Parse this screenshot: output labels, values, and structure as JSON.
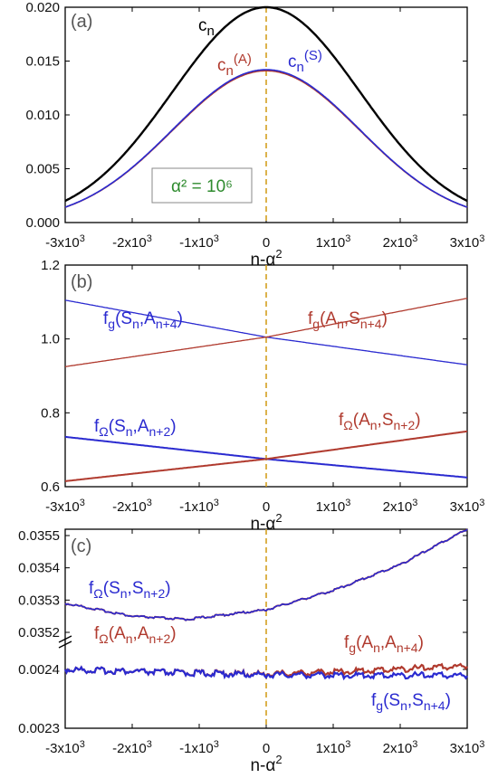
{
  "chart_data": [
    {
      "type": "line",
      "panel_label": "(a)",
      "xlabel": "n-α²",
      "xlim": [
        -3000,
        3000
      ],
      "ylim": [
        0,
        0.02
      ],
      "yticks": [
        "0.000",
        "0.005",
        "0.010",
        "0.015",
        "0.020"
      ],
      "xticks": [
        "-3x10³",
        "-2x10³",
        "-1x10³",
        "0",
        "1x10³",
        "2x10³",
        "3x10³"
      ],
      "note": "Gaussian curves centered at n-α² = 0",
      "series": [
        {
          "name": "c_n",
          "color": "#000000",
          "peak": 0.02,
          "sigma": 1400,
          "x": [
            -3000,
            -2000,
            -1000,
            0,
            1000,
            2000,
            3000
          ],
          "values": [
            0.0021,
            0.0072,
            0.0155,
            0.02,
            0.0155,
            0.0072,
            0.0021
          ]
        },
        {
          "name": "c_n^(A)",
          "color": "#b03a2e",
          "peak": 0.0141,
          "sigma": 1400,
          "x": [
            -3000,
            -2000,
            -1000,
            0,
            1000,
            2000,
            3000
          ],
          "values": [
            0.0015,
            0.0051,
            0.011,
            0.0141,
            0.011,
            0.0051,
            0.0015
          ]
        },
        {
          "name": "c_n^(S)",
          "color": "#2a2ad0",
          "peak": 0.0142,
          "sigma": 1400,
          "x": [
            -3000,
            -2000,
            -1000,
            0,
            1000,
            2000,
            3000
          ],
          "values": [
            0.0015,
            0.0051,
            0.011,
            0.0142,
            0.011,
            0.0051,
            0.0015
          ]
        }
      ],
      "annotations": {
        "cn": "c",
        "cn_sub": "n",
        "cA": "c",
        "cA_sub": "n",
        "cA_sup": "(A)",
        "cS": "c",
        "cS_sub": "n",
        "cS_sup": "(S)",
        "alpha_box": "α² = 10⁶"
      }
    },
    {
      "type": "line",
      "panel_label": "(b)",
      "xlabel": "n-α²",
      "xlim": [
        -3000,
        3000
      ],
      "ylim": [
        0.6,
        1.2
      ],
      "yticks": [
        "0.6",
        "0.8",
        "1.0",
        "1.2"
      ],
      "xticks": [
        "-3x10³",
        "-2x10³",
        "-1x10³",
        "0",
        "1x10³",
        "2x10³",
        "3x10³"
      ],
      "series": [
        {
          "name": "f_g(S_n,A_n+4)",
          "color": "#2a2ad0",
          "x": [
            -3000,
            0,
            3000
          ],
          "values": [
            1.105,
            1.005,
            0.93
          ]
        },
        {
          "name": "f_g(A_n,S_n+4)",
          "color": "#b03a2e",
          "x": [
            -3000,
            0,
            3000
          ],
          "values": [
            0.925,
            1.005,
            1.11
          ]
        },
        {
          "name": "f_Ω(S_n,A_n+2)",
          "color": "#2a2ad0",
          "x": [
            -3000,
            0,
            3000
          ],
          "values": [
            0.735,
            0.675,
            0.625
          ]
        },
        {
          "name": "f_Ω(A_n,S_n+2)",
          "color": "#b03a2e",
          "x": [
            -3000,
            0,
            3000
          ],
          "values": [
            0.615,
            0.675,
            0.75
          ]
        }
      ],
      "annotations": {
        "fg_SA": "f",
        "fg_SA_sub": "g",
        "fg_SA_arg": "(S",
        "fg_SA_arg_sub": "n",
        "fg_SA_arg2": ",A",
        "fg_SA_arg2_sub": "n+4",
        "fg_AS": "f",
        "fg_AS_sub": "g",
        "fg_AS_arg": "(A",
        "fg_AS_arg_sub": "n",
        "fg_AS_arg2": ",S",
        "fg_AS_arg2_sub": "n+4",
        "fo_SA": "f",
        "fo_SA_sub": "Ω",
        "fo_SA_arg": "(S",
        "fo_SA_arg_sub": "n",
        "fo_SA_arg2": ",A",
        "fo_SA_arg2_sub": "n+2",
        "fo_AS": "f",
        "fo_AS_sub": "Ω",
        "fo_AS_arg": "(A",
        "fo_AS_arg_sub": "n",
        "fo_AS_arg2": ",S",
        "fo_AS_arg2_sub": "n+2",
        "close": ")"
      }
    },
    {
      "type": "line",
      "panel_label": "(c)",
      "xlabel": "n-α²",
      "xlim": [
        -3000,
        3000
      ],
      "broken_axis": true,
      "ylim_upper": [
        0.03515,
        0.0355
      ],
      "ylim_lower": [
        0.0023,
        0.00243
      ],
      "yticks_upper": [
        "0.0352",
        "0.0353",
        "0.0354",
        "0.0355"
      ],
      "yticks_lower": [
        "0.0023",
        "0.0024"
      ],
      "xticks": [
        "-3x10³",
        "-2x10³",
        "-1x10³",
        "0",
        "1x10³",
        "2x10³",
        "3x10³"
      ],
      "series": [
        {
          "name": "f_Ω(S_n,S_n+2)",
          "color": "#2a2ad0",
          "axis": "upper",
          "x": [
            -3000,
            -2000,
            -1200,
            0,
            1000,
            2000,
            3000
          ],
          "values": [
            0.03529,
            0.03525,
            0.03524,
            0.03527,
            0.03533,
            0.03541,
            0.03552
          ]
        },
        {
          "name": "f_Ω(A_n,A_n+2)",
          "color": "#b03a2e",
          "axis": "upper",
          "x": [
            -3000,
            -2000,
            -1200,
            0,
            1000,
            2000,
            3000
          ],
          "values": [
            0.03529,
            0.03525,
            0.03524,
            0.03527,
            0.03533,
            0.03541,
            0.03552
          ]
        },
        {
          "name": "f_g(A_n,A_n+4)",
          "color": "#b03a2e",
          "axis": "lower",
          "x": [
            -3000,
            -1500,
            0,
            1500,
            3000
          ],
          "values": [
            0.0024,
            0.002395,
            0.002392,
            0.002398,
            0.002406
          ]
        },
        {
          "name": "f_g(S_n,S_n+4)",
          "color": "#2a2ad0",
          "axis": "lower",
          "x": [
            -3000,
            -1500,
            0,
            1500,
            3000
          ],
          "values": [
            0.0024,
            0.002395,
            0.002391,
            0.00239,
            0.00239
          ]
        }
      ],
      "annotations": {
        "fo_SS": "f",
        "fo_SS_sub": "Ω",
        "fo_SS_arg": "(S",
        "fo_SS_arg_sub": "n",
        "fo_SS_arg2": ",S",
        "fo_SS_arg2_sub": "n+2",
        "fo_AA": "f",
        "fo_AA_sub": "Ω",
        "fo_AA_arg": "(A",
        "fo_AA_arg_sub": "n",
        "fo_AA_arg2": ",A",
        "fo_AA_arg2_sub": "n+2",
        "fg_AA": "f",
        "fg_AA_sub": "g",
        "fg_AA_arg": "(A",
        "fg_AA_arg_sub": "n",
        "fg_AA_arg2": ",A",
        "fg_AA_arg2_sub": "n+4",
        "fg_SS": "f",
        "fg_SS_sub": "g",
        "fg_SS_arg": "(S",
        "fg_SS_arg_sub": "n",
        "fg_SS_arg2": ",S",
        "fg_SS_arg2_sub": "n+4",
        "close": ")"
      }
    }
  ],
  "colors": {
    "black": "#000000",
    "red": "#b03a2e",
    "blue": "#2a2ad0",
    "green": "#2e8b2e",
    "dash": "#d4a020"
  }
}
